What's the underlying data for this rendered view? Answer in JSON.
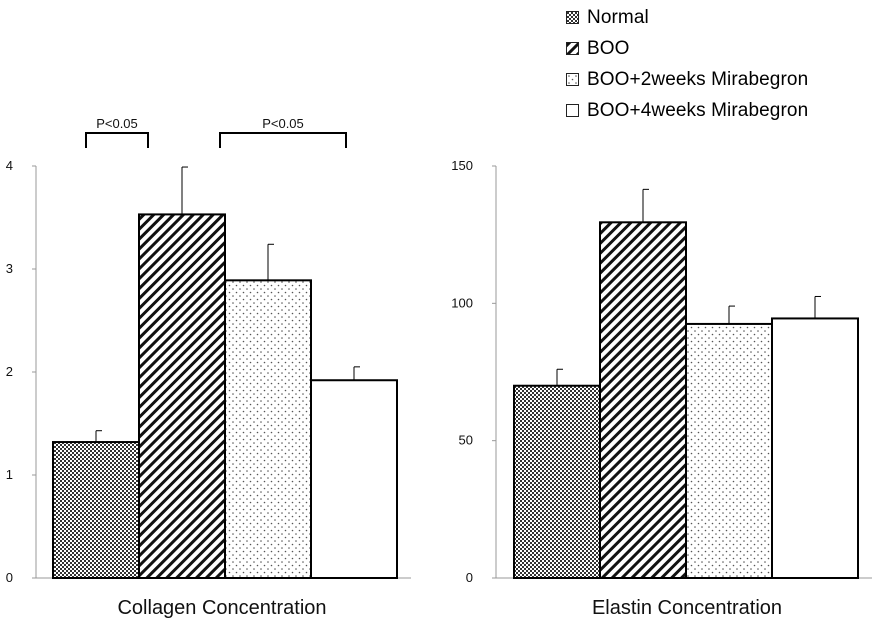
{
  "legend": {
    "items": [
      {
        "label": "Normal",
        "pattern": "checker"
      },
      {
        "label": "BOO",
        "pattern": "diag"
      },
      {
        "label": "BOO+2weeks Mirabegron",
        "pattern": "dots"
      },
      {
        "label": "BOO+4weeks Mirabegron",
        "pattern": "blank"
      }
    ]
  },
  "chart_data": [
    {
      "type": "bar",
      "categories": [
        "Normal",
        "BOO",
        "BOO+2weeks Mirabegron",
        "BOO+4weeks Mirabegron"
      ],
      "values": [
        1.32,
        3.53,
        2.89,
        1.92
      ],
      "errors": [
        0.11,
        0.46,
        0.35,
        0.13
      ],
      "xlabel": "Collagen Concentration",
      "ylabel": "",
      "ylim": [
        0,
        4
      ],
      "yticks": [
        "0",
        "1",
        "2",
        "3",
        "4"
      ],
      "annotations": [
        {
          "text": "P<0.05",
          "from": 0,
          "to": 1
        },
        {
          "text": "P<0.05",
          "from": 1,
          "to": 3
        }
      ],
      "grid": false
    },
    {
      "type": "bar",
      "categories": [
        "Normal",
        "BOO",
        "BOO+2weeks Mirabegron",
        "BOO+4weeks Mirabegron"
      ],
      "values": [
        70,
        129.5,
        92.5,
        94.5
      ],
      "errors": [
        6,
        12,
        6.5,
        8
      ],
      "xlabel": "Elastin Concentration",
      "ylabel": "",
      "ylim": [
        0,
        150
      ],
      "yticks": [
        "0",
        "50",
        "100",
        "150"
      ],
      "annotations": [],
      "grid": false
    }
  ]
}
